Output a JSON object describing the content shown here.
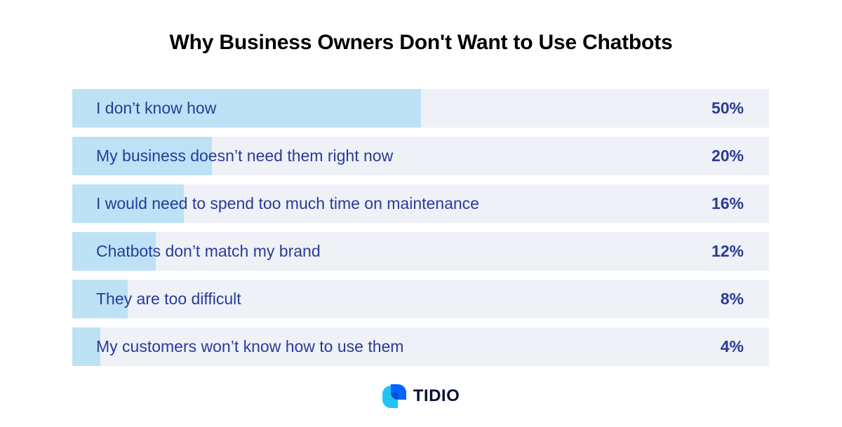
{
  "chart_data": {
    "type": "bar",
    "orientation": "horizontal",
    "title": "Why Business Owners Don't Want to Use Chatbots",
    "categories": [
      "I don’t know how",
      "My business doesn’t need them right now",
      "I would need to spend too much time on maintenance",
      "Chatbots don’t match my brand",
      "They are too difficult",
      "My customers won’t know how to use them"
    ],
    "values": [
      50,
      20,
      16,
      12,
      8,
      4
    ],
    "value_labels": [
      "50%",
      "20%",
      "16%",
      "12%",
      "8%",
      "4%"
    ],
    "xlim": [
      0,
      100
    ],
    "grid": false,
    "colors": {
      "fill": "#bde2f5",
      "track": "#eef1f6",
      "text": "#2a3a9a"
    }
  },
  "brand": {
    "name": "TIDIO",
    "logo_icon": "tidio-logo-icon",
    "colors": [
      "#0066ff",
      "#20c4f4"
    ]
  }
}
